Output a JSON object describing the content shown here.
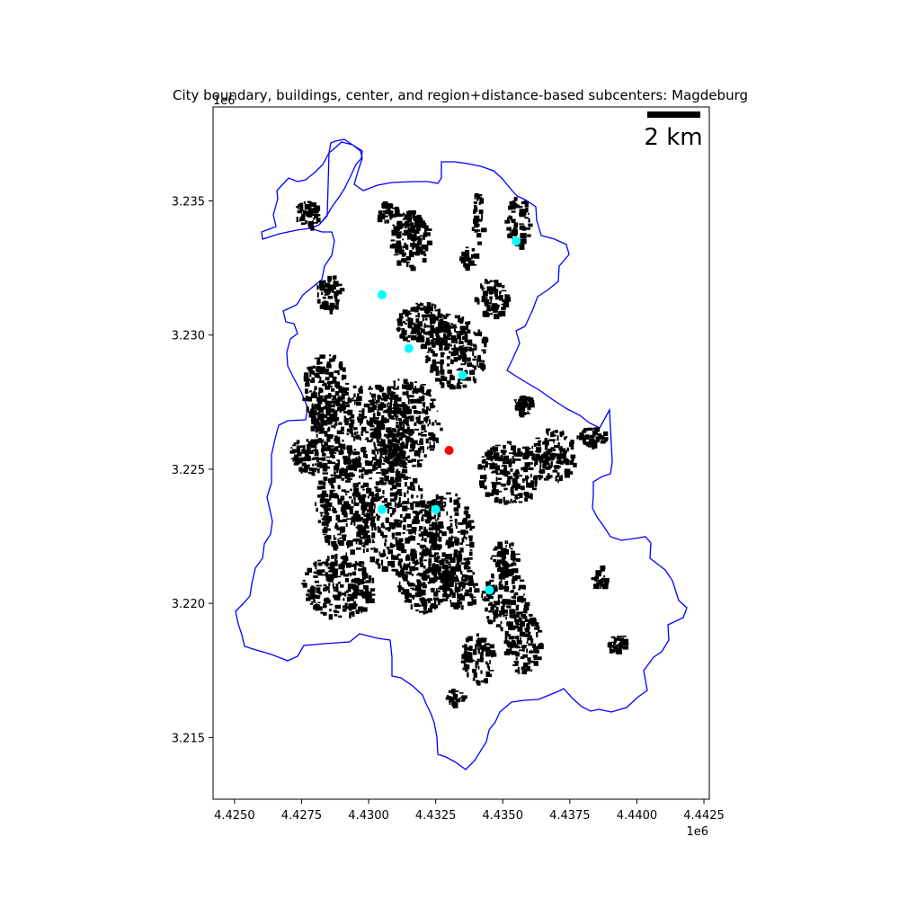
{
  "title": "City boundary, buildings, center, and region+distance-based subcenters: Magdeburg",
  "map_data": {
    "x_axis": {
      "range": [
        4.4242,
        4.4427
      ],
      "ticks": [
        4.425,
        4.4275,
        4.43,
        4.4325,
        4.435,
        4.4375,
        4.44,
        4.4425
      ],
      "tick_labels": [
        "4.4250",
        "4.4275",
        "4.4300",
        "4.4325",
        "4.4350",
        "4.4375",
        "4.4400",
        "4.4425"
      ],
      "offset_label": "1e6"
    },
    "y_axis": {
      "range": [
        3.2127,
        3.2385
      ],
      "ticks": [
        3.215,
        3.22,
        3.225,
        3.23,
        3.235
      ],
      "tick_labels": [
        "3.215",
        "3.220",
        "3.225",
        "3.230",
        "3.235"
      ],
      "offset_label": "1e6"
    },
    "scale_bar": {
      "label": "2 km",
      "length_km": 2
    },
    "center": {
      "x": 4.433,
      "y": 3.2257,
      "color": "#ff0000"
    },
    "subcenters": [
      {
        "x": 4.4355,
        "y": 3.2335
      },
      {
        "x": 4.4305,
        "y": 3.2315
      },
      {
        "x": 4.4315,
        "y": 3.2295
      },
      {
        "x": 4.4335,
        "y": 3.2285
      },
      {
        "x": 4.4305,
        "y": 3.2235
      },
      {
        "x": 4.4325,
        "y": 3.2235
      },
      {
        "x": 4.4345,
        "y": 3.2205
      }
    ],
    "colors": {
      "boundary": "#0000ff",
      "buildings": "#000000",
      "subcenter": "#00ffff",
      "center": "#ff0000"
    }
  }
}
